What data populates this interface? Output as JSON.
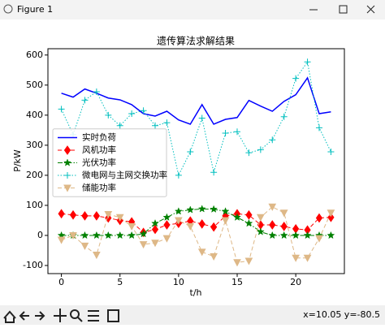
{
  "window": {
    "title": "Figure 1"
  },
  "toolbar": {
    "status": "x=10.05 y=-80.5"
  },
  "chart_data": {
    "type": "line",
    "title": "遗传算法求解结果",
    "x_label": "t/h",
    "y_label": "P/kW",
    "x": [
      0,
      1,
      2,
      3,
      4,
      5,
      6,
      7,
      8,
      9,
      10,
      11,
      12,
      13,
      14,
      15,
      16,
      17,
      18,
      19,
      20,
      21,
      22,
      23
    ],
    "series": [
      {
        "name": "实时负荷",
        "color": "#0000ff",
        "linestyle": "solid",
        "marker": "none",
        "values": [
          473,
          460,
          487,
          473,
          457,
          451,
          435,
          405,
          397,
          413,
          384,
          370,
          435,
          370,
          386,
          392,
          449,
          430,
          413,
          446,
          468,
          524,
          405,
          411
        ]
      },
      {
        "name": "风机功率",
        "color": "#ff0000",
        "linestyle": "dashed",
        "marker": "diamond",
        "values": [
          72,
          68,
          65,
          65,
          58,
          50,
          45,
          10,
          20,
          35,
          40,
          48,
          38,
          28,
          65,
          72,
          68,
          35,
          35,
          30,
          22,
          18,
          58,
          60
        ]
      },
      {
        "name": "光伏功率",
        "color": "#008000",
        "linestyle": "dashdot",
        "marker": "star",
        "values": [
          0,
          0,
          0,
          0,
          0,
          0,
          0,
          5,
          40,
          60,
          80,
          85,
          88,
          87,
          80,
          60,
          40,
          12,
          0,
          0,
          0,
          0,
          0,
          0
        ]
      },
      {
        "name": "微电网与主网交换功率",
        "color": "#00bfbf",
        "linestyle": "dotted",
        "marker": "plus",
        "values": [
          420,
          335,
          450,
          478,
          400,
          365,
          405,
          415,
          365,
          375,
          200,
          278,
          390,
          210,
          340,
          345,
          275,
          285,
          318,
          395,
          522,
          577,
          358,
          278
        ]
      },
      {
        "name": "储能功率",
        "color": "#deb887",
        "linestyle": "dashed",
        "marker": "triangle-down",
        "values": [
          -15,
          0,
          -35,
          -65,
          70,
          60,
          30,
          -30,
          -25,
          -10,
          50,
          30,
          -55,
          -70,
          50,
          -90,
          -85,
          60,
          95,
          75,
          -75,
          -75,
          -10,
          75
        ]
      }
    ],
    "xlim": [
      -1.15,
      24.15
    ],
    "ylim": [
      -127,
      621
    ],
    "xticks": [
      0,
      5,
      10,
      15,
      20
    ],
    "yticks": [
      -100,
      0,
      100,
      200,
      300,
      400,
      500,
      600
    ],
    "grid": false,
    "legend_position": "center left"
  }
}
